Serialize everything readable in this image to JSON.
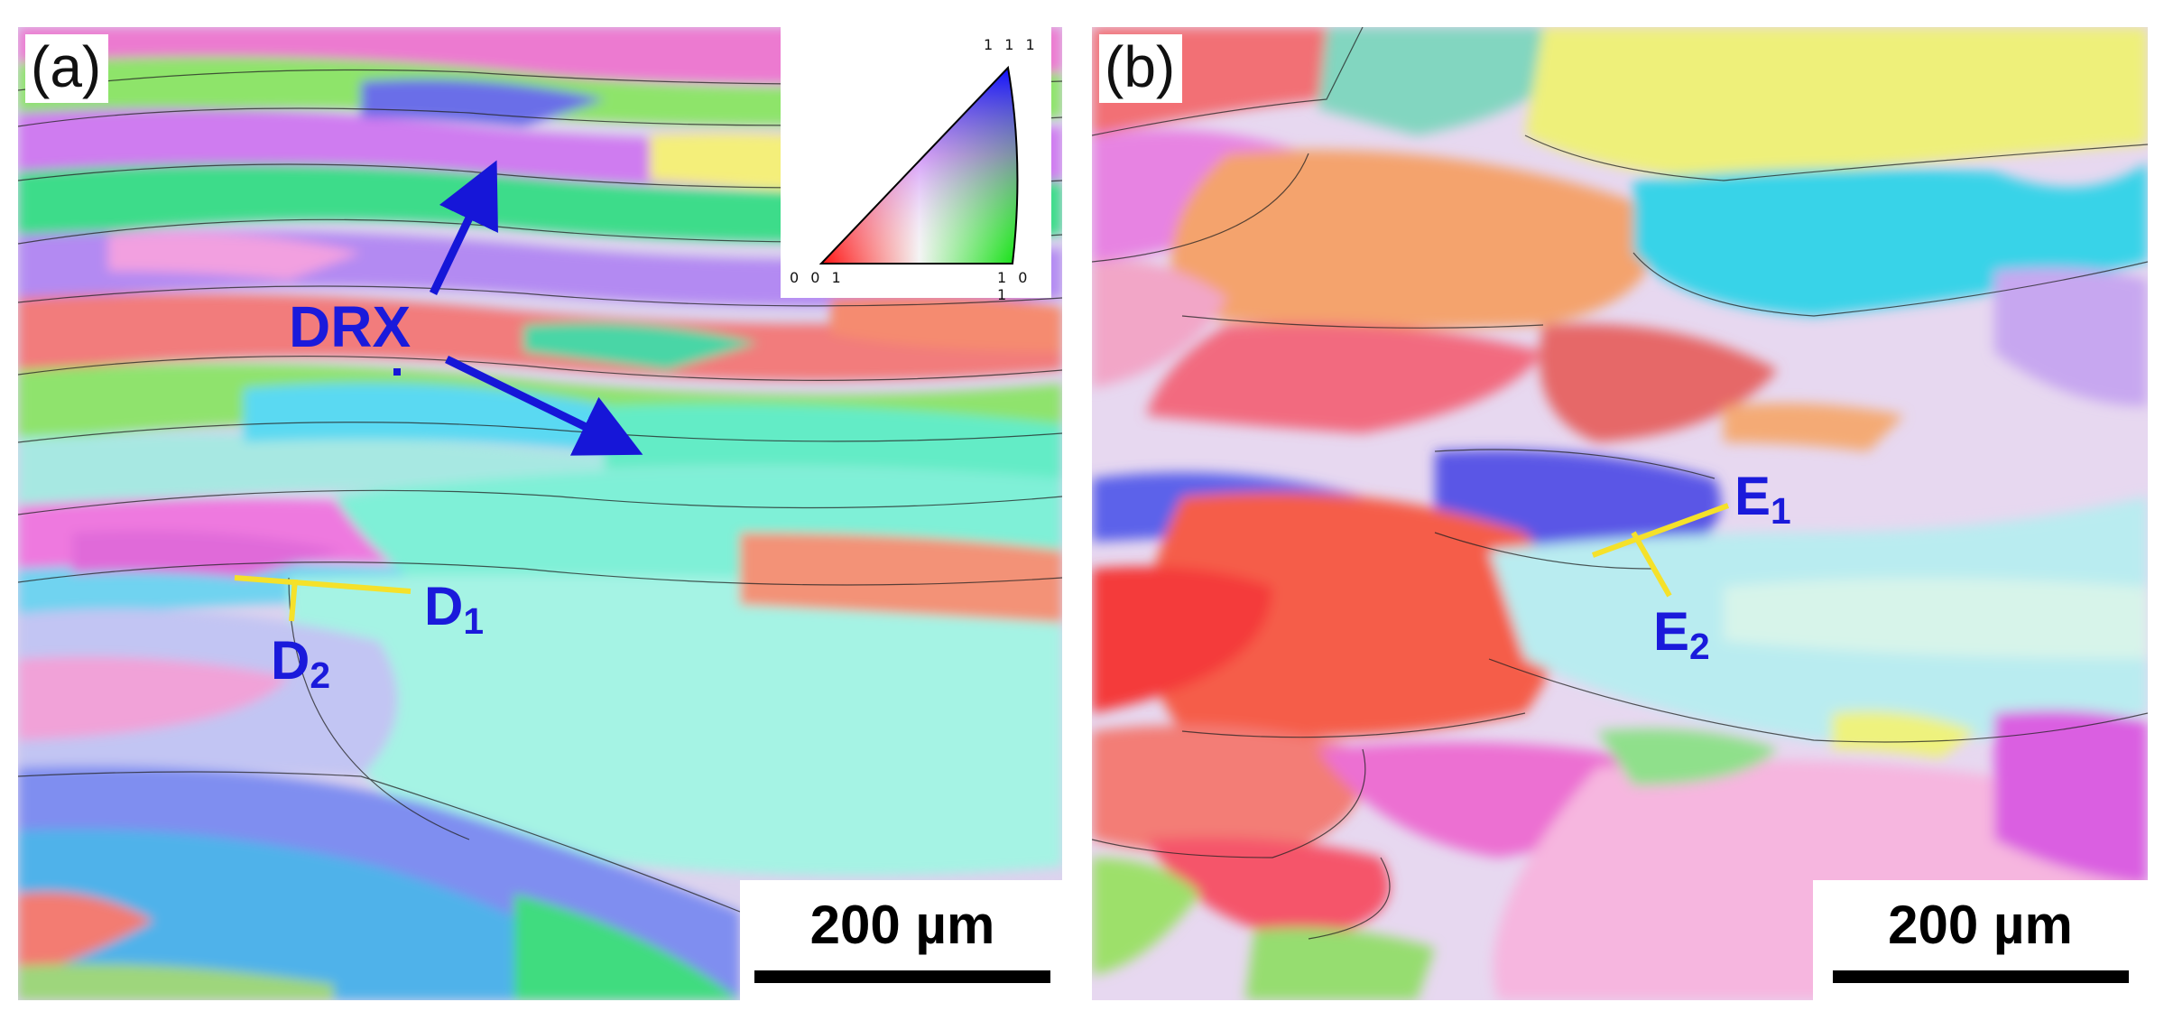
{
  "panels": {
    "a": {
      "label": "(a)",
      "scale_bar": "200 µm",
      "annotations": {
        "drx": "DRX",
        "d1_main": "D",
        "d1_sub": "1",
        "d2_main": "D",
        "d2_sub": "2"
      },
      "legend": {
        "top": "1 1 1",
        "left": "0 0 1",
        "right": "1 0 1"
      }
    },
    "b": {
      "label": "(b)",
      "scale_bar": "200 µm",
      "annotations": {
        "e1_main": "E",
        "e1_sub": "1",
        "e2_main": "E",
        "e2_sub": "2"
      }
    }
  },
  "colors": {
    "annotation_blue": "#1a1adb",
    "marker_yellow": "#f5e12a",
    "arrow_blue": "#1616d8"
  }
}
